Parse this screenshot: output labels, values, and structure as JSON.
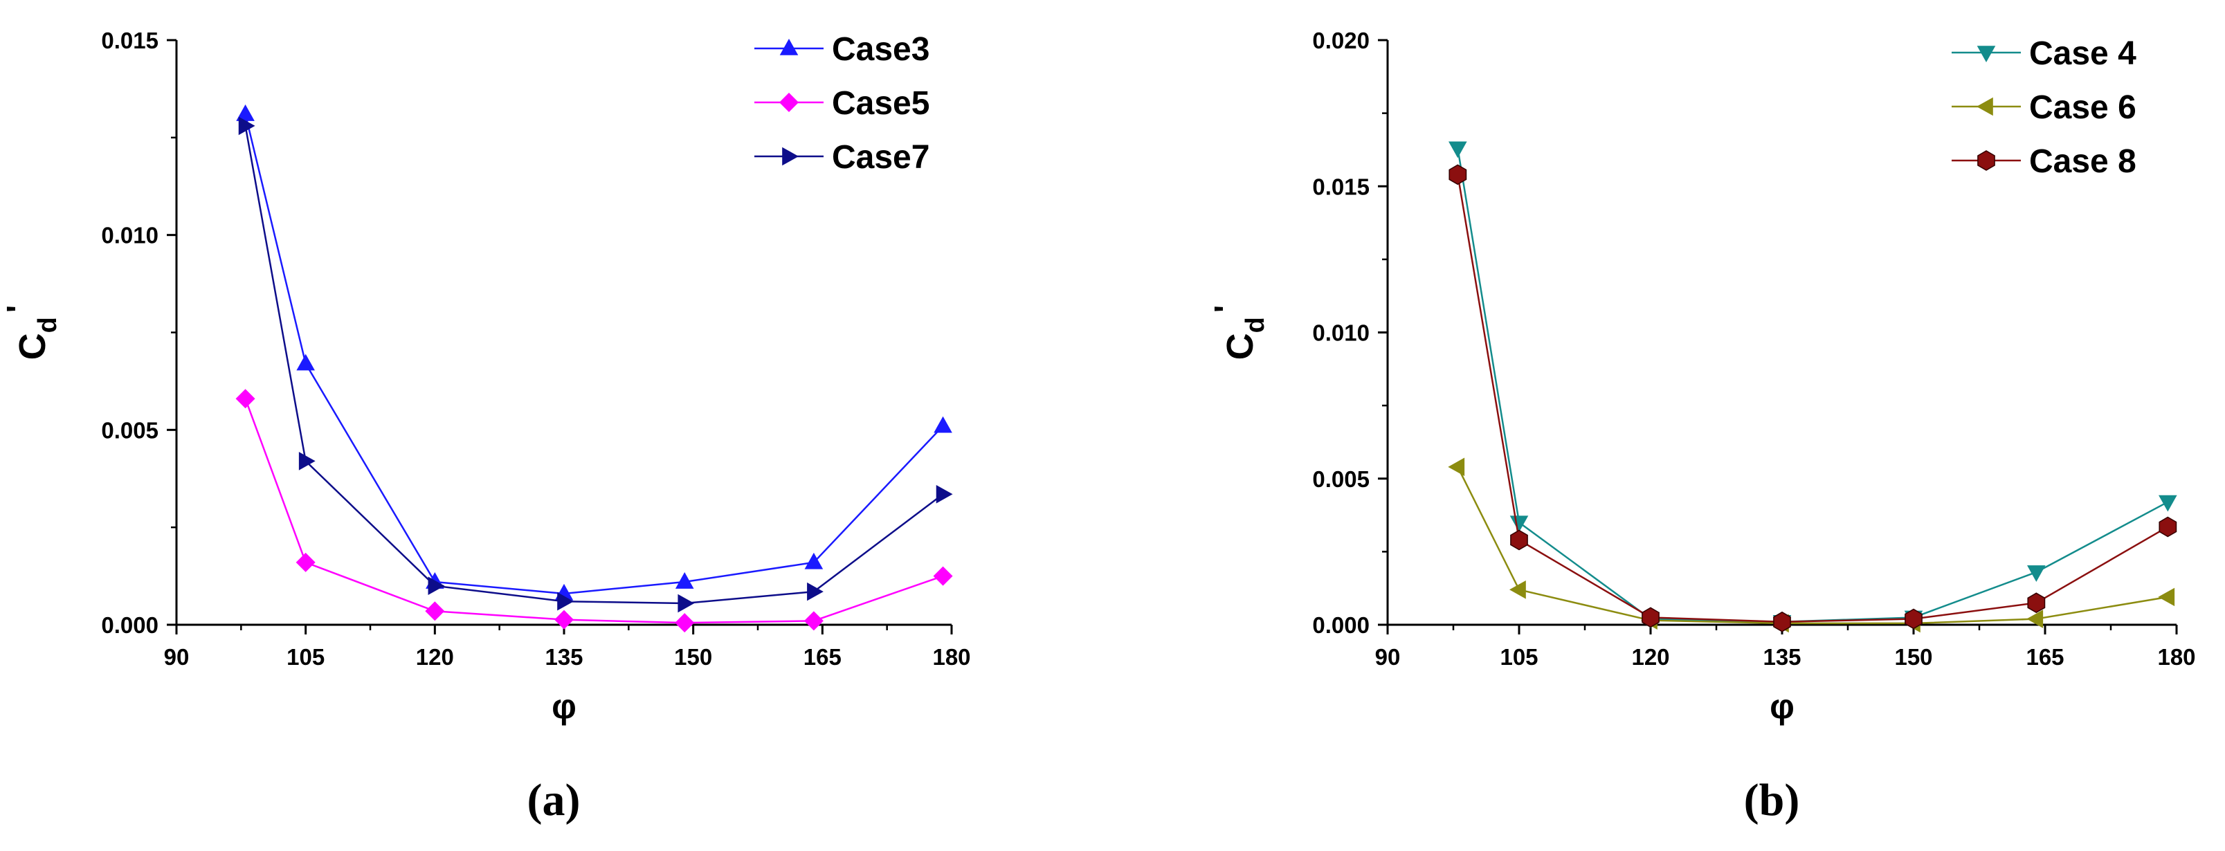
{
  "chart_data": [
    {
      "type": "line",
      "panel_label": "(a)",
      "xlabel": "φ",
      "ylabel_main": "C",
      "ylabel_sub": "d",
      "ylabel_prime": "'",
      "xlim": [
        90,
        180
      ],
      "ylim": [
        0,
        0.015
      ],
      "xticks": [
        "90",
        "105",
        "120",
        "135",
        "150",
        "165",
        "180"
      ],
      "yticks": [
        "0.000",
        "0.005",
        "0.010",
        "0.015"
      ],
      "x": [
        98,
        105,
        120,
        135,
        149,
        164,
        179
      ],
      "legend_position": "top-right",
      "series": [
        {
          "name": "Case3",
          "color": "#1a1aff",
          "marker": "triangle-up",
          "values": [
            0.0131,
            0.0067,
            0.0011,
            0.0008,
            0.0011,
            0.0016,
            0.0051
          ]
        },
        {
          "name": "Case5",
          "color": "#ff00ff",
          "marker": "diamond",
          "values": [
            0.0058,
            0.0016,
            0.00035,
            0.00013,
            5e-05,
            0.0001,
            0.00125
          ]
        },
        {
          "name": "Case7",
          "color": "#0d0d8a",
          "marker": "triangle-right",
          "values": [
            0.0128,
            0.0042,
            0.001,
            0.0006,
            0.00055,
            0.00085,
            0.00335
          ]
        }
      ]
    },
    {
      "type": "line",
      "panel_label": "(b)",
      "xlabel": "φ",
      "ylabel_main": "C",
      "ylabel_sub": "d",
      "ylabel_prime": "'",
      "xlim": [
        90,
        180
      ],
      "ylim": [
        0,
        0.02
      ],
      "xticks": [
        "90",
        "105",
        "120",
        "135",
        "150",
        "165",
        "180"
      ],
      "yticks": [
        "0.000",
        "0.005",
        "0.010",
        "0.015",
        "0.020"
      ],
      "x": [
        98,
        105,
        120,
        135,
        150,
        164,
        179
      ],
      "legend_position": "top-right",
      "series": [
        {
          "name": "Case 4",
          "color": "#138c8c",
          "marker": "triangle-down",
          "values": [
            0.0163,
            0.0035,
            0.0002,
            0.0001,
            0.00025,
            0.0018,
            0.0042
          ]
        },
        {
          "name": "Case 6",
          "color": "#8c8c10",
          "marker": "triangle-left",
          "values": [
            0.0054,
            0.0012,
            0.00015,
            5e-05,
            5e-05,
            0.0002,
            0.00095
          ]
        },
        {
          "name": "Case 8",
          "color": "#8b0f0f",
          "marker": "hexagon",
          "values": [
            0.0154,
            0.0029,
            0.00025,
            0.0001,
            0.0002,
            0.00075,
            0.00335
          ]
        }
      ]
    }
  ]
}
